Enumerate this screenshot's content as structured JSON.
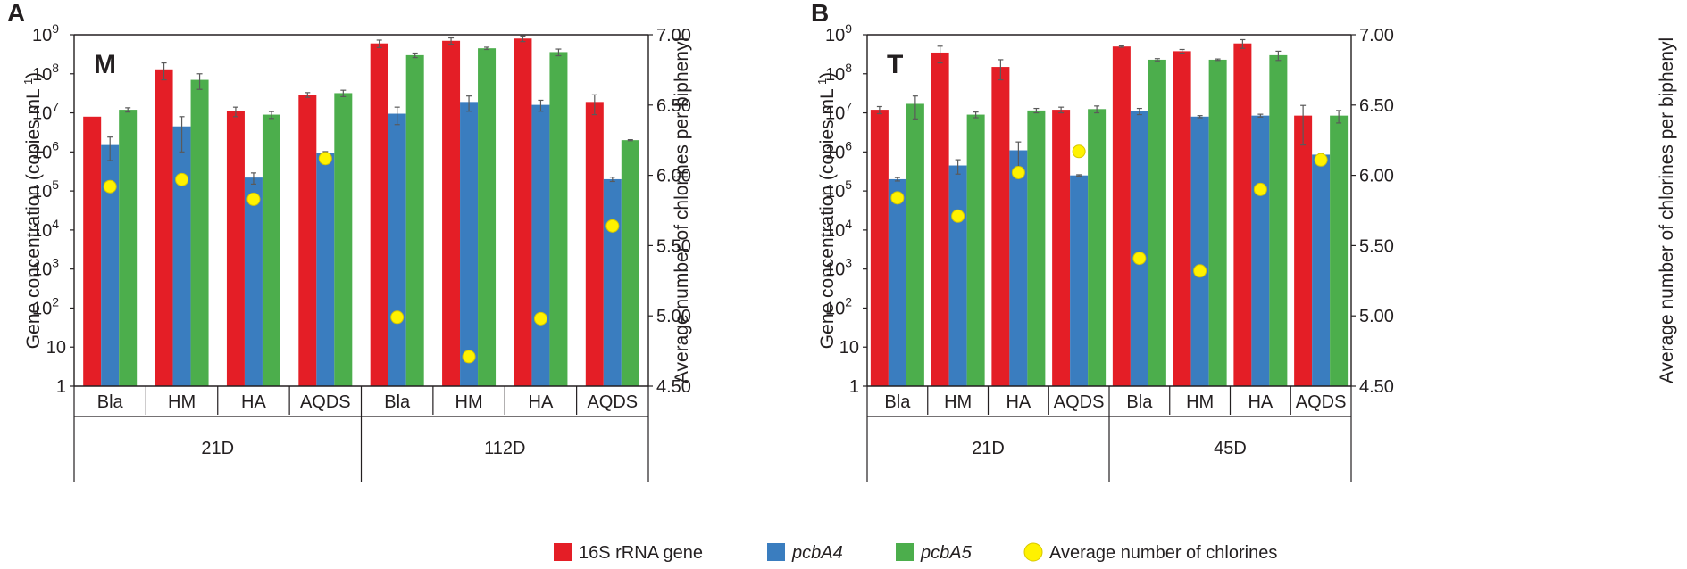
{
  "legend": {
    "items": [
      {
        "label": "16S rRNA gene",
        "italic": false,
        "color": "#e41e26",
        "shape": "square"
      },
      {
        "label": "pcbA4",
        "italic": true,
        "color": "#3a7dbf",
        "shape": "square"
      },
      {
        "label": "pcbA5",
        "italic": true,
        "color": "#4cae4c",
        "shape": "square"
      },
      {
        "label": "Average number of chlorines",
        "italic": false,
        "color": "#fff200",
        "shape": "circle"
      }
    ]
  },
  "chart_data": [
    {
      "panel": "A",
      "inset_label": "M",
      "type": "bar",
      "y_scale": "log",
      "ylabel": "Gene concentration (copies mL-1)",
      "ylabel_parts": {
        "main": "Gene concentration (copies mL",
        "sup": "-1",
        "end": ")"
      },
      "ylim": [
        1,
        1000000000
      ],
      "yticks": [
        {
          "value": 1,
          "base": "1",
          "exp": ""
        },
        {
          "value": 10,
          "base": "10",
          "exp": ""
        },
        {
          "value": 100,
          "base": "10",
          "exp": "2"
        },
        {
          "value": 1000,
          "base": "10",
          "exp": "3"
        },
        {
          "value": 10000,
          "base": "10",
          "exp": "4"
        },
        {
          "value": 100000,
          "base": "10",
          "exp": "5"
        },
        {
          "value": 1000000,
          "base": "10",
          "exp": "6"
        },
        {
          "value": 10000000,
          "base": "10",
          "exp": "7"
        },
        {
          "value": 100000000,
          "base": "10",
          "exp": "8"
        },
        {
          "value": 1000000000,
          "base": "10",
          "exp": "9"
        }
      ],
      "y2label": "Average number of chlorines per biphenyl",
      "y2lim": [
        4.5,
        7.0
      ],
      "y2ticks": [
        "4.50",
        "5.00",
        "5.50",
        "6.00",
        "6.50",
        "7.00"
      ],
      "categories": [
        "Bla",
        "HM",
        "HA",
        "AQDS",
        "Bla",
        "HM",
        "HA",
        "AQDS"
      ],
      "groups": [
        {
          "label": "21D",
          "span": 4
        },
        {
          "label": "112D",
          "span": 4
        }
      ],
      "series": [
        {
          "name": "16S rRNA gene",
          "color": "#e41e26",
          "values": [
            8000000,
            130000000,
            11000000,
            29000000,
            600000000,
            700000000,
            800000000,
            19000000
          ],
          "errors": [
            0,
            60000000,
            3000000,
            4000000,
            130000000,
            130000000,
            130000000,
            10000000
          ]
        },
        {
          "name": "pcbA4",
          "color": "#3a7dbf",
          "values": [
            1500000,
            4500000,
            220000,
            950000,
            9500000,
            19000000,
            16000000,
            200000
          ],
          "errors": [
            900000,
            3500000,
            70000,
            70000,
            4500000,
            8000000,
            5000000,
            25000
          ]
        },
        {
          "name": "pcbA5",
          "color": "#4cae4c",
          "values": [
            12000000,
            70000000,
            9000000,
            32000000,
            300000000,
            450000000,
            360000000,
            2000000
          ],
          "errors": [
            1500000,
            30000000,
            1800000,
            6000000,
            40000000,
            30000000,
            70000000,
            60000
          ]
        }
      ],
      "chlorines": [
        5.92,
        5.97,
        5.83,
        6.12,
        4.99,
        4.71,
        4.98,
        5.64
      ]
    },
    {
      "panel": "B",
      "inset_label": "T",
      "type": "bar",
      "y_scale": "log",
      "ylabel": "Gene concentration (copies mL-1)",
      "ylabel_parts": {
        "main": "Gene concentration (copies mL",
        "sup": "-1",
        "end": ")"
      },
      "ylim": [
        1,
        1000000000
      ],
      "yticks": [
        {
          "value": 1,
          "base": "1",
          "exp": ""
        },
        {
          "value": 10,
          "base": "10",
          "exp": ""
        },
        {
          "value": 100,
          "base": "10",
          "exp": "2"
        },
        {
          "value": 1000,
          "base": "10",
          "exp": "3"
        },
        {
          "value": 10000,
          "base": "10",
          "exp": "4"
        },
        {
          "value": 100000,
          "base": "10",
          "exp": "5"
        },
        {
          "value": 1000000,
          "base": "10",
          "exp": "6"
        },
        {
          "value": 10000000,
          "base": "10",
          "exp": "7"
        },
        {
          "value": 100000000,
          "base": "10",
          "exp": "8"
        },
        {
          "value": 1000000000,
          "base": "10",
          "exp": "9"
        }
      ],
      "y2label": "Average number of chlorines per biphenyl",
      "y2lim": [
        4.5,
        7.0
      ],
      "y2ticks": [
        "4.50",
        "5.00",
        "5.50",
        "6.00",
        "6.50",
        "7.00"
      ],
      "categories": [
        "Bla",
        "HM",
        "HA",
        "AQDS",
        "Bla",
        "HM",
        "HA",
        "AQDS"
      ],
      "groups": [
        {
          "label": "21D",
          "span": 4
        },
        {
          "label": "45D",
          "span": 4
        }
      ],
      "series": [
        {
          "name": "16S rRNA gene",
          "color": "#e41e26",
          "values": [
            12000000,
            350000000,
            150000000,
            12000000,
            500000000,
            380000000,
            600000000,
            8500000
          ],
          "errors": [
            2500000,
            160000000,
            80000000,
            2000000,
            20000000,
            40000000,
            150000000,
            7000000
          ]
        },
        {
          "name": "pcbA4",
          "color": "#3a7dbf",
          "values": [
            200000,
            450000,
            1100000,
            250000,
            11000000,
            8000000,
            8500000,
            850000
          ],
          "errors": [
            20000,
            180000,
            700000,
            10000,
            2000000,
            500000,
            700000,
            80000
          ]
        },
        {
          "name": "pcbA5",
          "color": "#4cae4c",
          "values": [
            17000000,
            9000000,
            11500000,
            12500000,
            230000000,
            230000000,
            300000000,
            8500000
          ],
          "errors": [
            10000000,
            1500000,
            1500000,
            2500000,
            15000000,
            10000000,
            80000000,
            3000000
          ]
        }
      ],
      "chlorines": [
        5.84,
        5.71,
        6.02,
        6.17,
        5.41,
        5.32,
        5.9,
        6.11
      ]
    }
  ]
}
